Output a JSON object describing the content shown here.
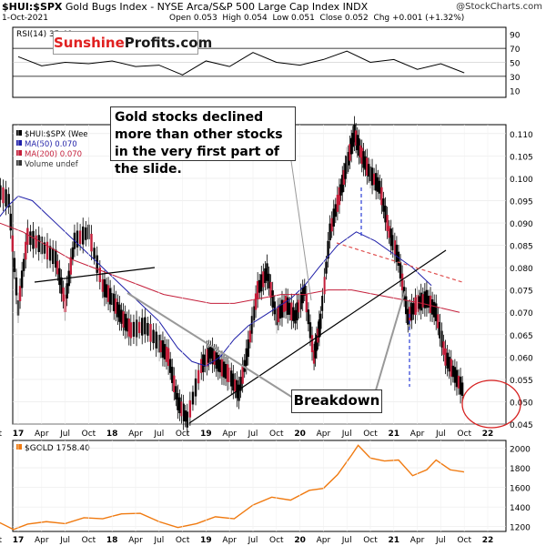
{
  "header": {
    "ticker": "$HUI:$SPX",
    "description": "Gold Bugs Index - NYSE Arca/S&P 500 Large Cap Index  INDX",
    "date": "1-Oct-2021",
    "open": "Open 0.053",
    "high": "High 0.054",
    "low": "Low 0.051",
    "close": "Close 0.052",
    "change": "Chg +0.001 (+1.32%)",
    "credit": "@StockCharts.com"
  },
  "logo": {
    "part1": "Sunshine",
    "part2": "Profits.com"
  },
  "annotations": {
    "callout_top": "Gold stocks declined more than other stocks in the very first part of the slide.",
    "callout_breakdown": "Breakdown"
  },
  "legend": {
    "main": "$HUI:$SPX (Wee",
    "ma50": "MA(50) 0.070",
    "ma200": "MA(200) 0.070",
    "volume": "Volume undef",
    "rsi": "RSI(14) 35.40",
    "gold": "$GOLD 1758.40"
  },
  "colors": {
    "price": "#000000",
    "ma50": "#1f1fa8",
    "ma200": "#c41e3a",
    "gold": "#f07a10",
    "ellipse": "#d62020",
    "dashed_vertical": "#2a3cd6",
    "dashed_trend": "#e05050"
  },
  "chart_data": [
    {
      "type": "line",
      "name_panel": "RSI",
      "y_ticks": [
        "90",
        "70",
        "50",
        "30",
        "10"
      ],
      "ylim": [
        0,
        100
      ],
      "reference_lines": [
        70,
        30
      ],
      "x": [
        2017.0,
        2017.25,
        2017.5,
        2017.75,
        2018.0,
        2018.25,
        2018.5,
        2018.75,
        2019.0,
        2019.25,
        2019.5,
        2019.75,
        2020.0,
        2020.25,
        2020.5,
        2020.75,
        2021.0,
        2021.25,
        2021.5,
        2021.75
      ],
      "values": [
        58,
        45,
        50,
        48,
        52,
        44,
        46,
        32,
        52,
        44,
        64,
        50,
        46,
        54,
        66,
        50,
        54,
        40,
        48,
        35
      ]
    },
    {
      "type": "line",
      "name_panel": "HUI/SPX ratio (weekly)",
      "y_ticks": [
        "0.110",
        "0.105",
        "0.100",
        "0.095",
        "0.090",
        "0.085",
        "0.080",
        "0.075",
        "0.070",
        "0.065",
        "0.060",
        "0.055",
        "0.050",
        "0.045"
      ],
      "ylim": [
        0.045,
        0.112
      ],
      "x_ticks": [
        "Oct",
        "17",
        "Apr",
        "Jul",
        "Oct",
        "18",
        "Apr",
        "Jul",
        "Oct",
        "19",
        "Apr",
        "Jul",
        "Oct",
        "20",
        "Apr",
        "Jul",
        "Oct",
        "21",
        "Apr",
        "Jul",
        "Oct",
        "22"
      ],
      "x": [
        2016.75,
        2016.9,
        2017.0,
        2017.1,
        2017.25,
        2017.4,
        2017.5,
        2017.6,
        2017.75,
        2017.9,
        2018.0,
        2018.1,
        2018.2,
        2018.35,
        2018.5,
        2018.6,
        2018.7,
        2018.8,
        2018.95,
        2019.05,
        2019.15,
        2019.25,
        2019.35,
        2019.45,
        2019.55,
        2019.65,
        2019.75,
        2019.85,
        2019.95,
        2020.05,
        2020.15,
        2020.22,
        2020.32,
        2020.42,
        2020.5,
        2020.58,
        2020.66,
        2020.75,
        2020.85,
        2020.95,
        2021.05,
        2021.15,
        2021.25,
        2021.35,
        2021.45,
        2021.55,
        2021.65,
        2021.75
      ],
      "values": [
        0.098,
        0.095,
        0.071,
        0.087,
        0.085,
        0.082,
        0.072,
        0.086,
        0.088,
        0.076,
        0.073,
        0.069,
        0.066,
        0.067,
        0.063,
        0.06,
        0.05,
        0.046,
        0.058,
        0.061,
        0.058,
        0.056,
        0.052,
        0.062,
        0.075,
        0.079,
        0.069,
        0.072,
        0.069,
        0.075,
        0.06,
        0.068,
        0.088,
        0.096,
        0.103,
        0.11,
        0.105,
        0.101,
        0.098,
        0.088,
        0.082,
        0.069,
        0.072,
        0.073,
        0.07,
        0.06,
        0.056,
        0.052
      ],
      "ma50": [
        0.09,
        0.094,
        0.096,
        0.095,
        0.092,
        0.089,
        0.086,
        0.083,
        0.08,
        0.077,
        0.074,
        0.071,
        0.068,
        0.065,
        0.062,
        0.059,
        0.058,
        0.06,
        0.064,
        0.067,
        0.069,
        0.071,
        0.073,
        0.076,
        0.08,
        0.085,
        0.088,
        0.086,
        0.083,
        0.08,
        0.076
      ],
      "ma50_x": [
        2016.75,
        2016.9,
        2017.0,
        2017.15,
        2017.3,
        2017.45,
        2017.6,
        2017.75,
        2017.9,
        2018.05,
        2018.2,
        2018.35,
        2018.5,
        2018.6,
        2018.7,
        2018.85,
        2019.0,
        2019.15,
        2019.3,
        2019.45,
        2019.6,
        2019.75,
        2019.9,
        2020.05,
        2020.2,
        2020.4,
        2020.6,
        2020.8,
        2021.0,
        2021.2,
        2021.4
      ],
      "ma200": [
        0.09,
        0.088,
        0.085,
        0.082,
        0.08,
        0.078,
        0.076,
        0.074,
        0.073,
        0.072,
        0.072,
        0.073,
        0.074,
        0.074,
        0.075,
        0.075,
        0.074,
        0.073,
        0.072,
        0.071,
        0.07
      ],
      "ma200_x": [
        2016.8,
        2017.05,
        2017.3,
        2017.55,
        2017.8,
        2018.05,
        2018.3,
        2018.55,
        2018.8,
        2019.05,
        2019.3,
        2019.55,
        2019.8,
        2020.05,
        2020.3,
        2020.55,
        2020.8,
        2021.05,
        2021.3,
        2021.5,
        2021.7
      ]
    },
    {
      "type": "line",
      "name_panel": "$GOLD",
      "y_ticks": [
        "2000",
        "1800",
        "1600",
        "1400",
        "1200"
      ],
      "ylim": [
        1150,
        2080
      ],
      "x_ticks": [
        "Oct",
        "17",
        "Apr",
        "Jul",
        "Oct",
        "18",
        "Apr",
        "Jul",
        "Oct",
        "19",
        "Apr",
        "Jul",
        "Oct",
        "20",
        "Apr",
        "Jul",
        "Oct",
        "21",
        "Apr",
        "Jul",
        "Oct",
        "22"
      ],
      "x": [
        2016.75,
        2016.95,
        2017.1,
        2017.3,
        2017.5,
        2017.7,
        2017.9,
        2018.1,
        2018.3,
        2018.5,
        2018.7,
        2018.9,
        2019.1,
        2019.3,
        2019.5,
        2019.7,
        2019.9,
        2020.1,
        2020.25,
        2020.4,
        2020.55,
        2020.62,
        2020.75,
        2020.9,
        2021.05,
        2021.2,
        2021.35,
        2021.45,
        2021.6,
        2021.75
      ],
      "values": [
        1265,
        1170,
        1225,
        1250,
        1230,
        1290,
        1280,
        1330,
        1335,
        1250,
        1190,
        1230,
        1300,
        1280,
        1420,
        1500,
        1470,
        1570,
        1590,
        1730,
        1930,
        2030,
        1900,
        1870,
        1880,
        1720,
        1780,
        1880,
        1780,
        1758
      ]
    }
  ]
}
